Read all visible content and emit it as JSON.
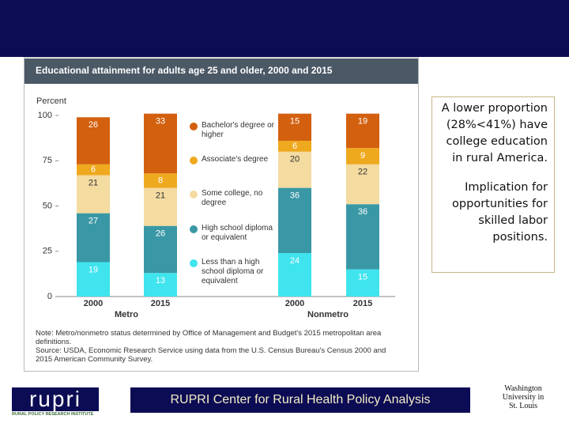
{
  "chart_data": {
    "type": "stacked_bar",
    "title": "Educational attainment for adults age 25 and older, 2000 and 2015",
    "y_label": "Percent",
    "categories": [
      "2000",
      "2015",
      "2000",
      "2015"
    ],
    "groups": [
      "Metro",
      "Nonmetro"
    ],
    "series": [
      {
        "name": "Less than a high school diploma or equivalent",
        "color": "#3fe4ee",
        "values": [
          19,
          13,
          24,
          15
        ]
      },
      {
        "name": "High school diploma or equivalent",
        "color": "#3a98a6",
        "values": [
          27,
          26,
          36,
          36
        ]
      },
      {
        "name": "Some college, no degree",
        "color": "#f4dba0",
        "values": [
          21,
          21,
          20,
          22
        ]
      },
      {
        "name": "Associate's degree",
        "color": "#efa91e",
        "values": [
          6,
          8,
          6,
          9
        ]
      },
      {
        "name": "Bachelor's degree or higher",
        "color": "#d3600f",
        "values": [
          26,
          33,
          15,
          19
        ]
      }
    ],
    "ylim": [
      0,
      100
    ],
    "yticks": [
      0,
      25,
      50,
      75,
      100
    ],
    "grid": false,
    "note": "Note: Metro/nonmetro status determined by Office of Management and Budget's 2015 metropolitan area definitions.",
    "source": "Source: USDA, Economic Research Service using data from the U.S. Census Bureau's Census 2000 and 2015 American Community Survey."
  },
  "slide": {
    "callout": [
      "A lower proportion (28%<41%) have college education in rural America.",
      "Implication for opportunities for skilled labor positions."
    ],
    "footer": "RUPRI Center for Rural Health Policy Analysis",
    "logo_left": "rupri",
    "logo_left_sub": "RURAL POLICY RESEARCH INSTITUTE",
    "logo_right": "Washington University in St. Louis"
  }
}
